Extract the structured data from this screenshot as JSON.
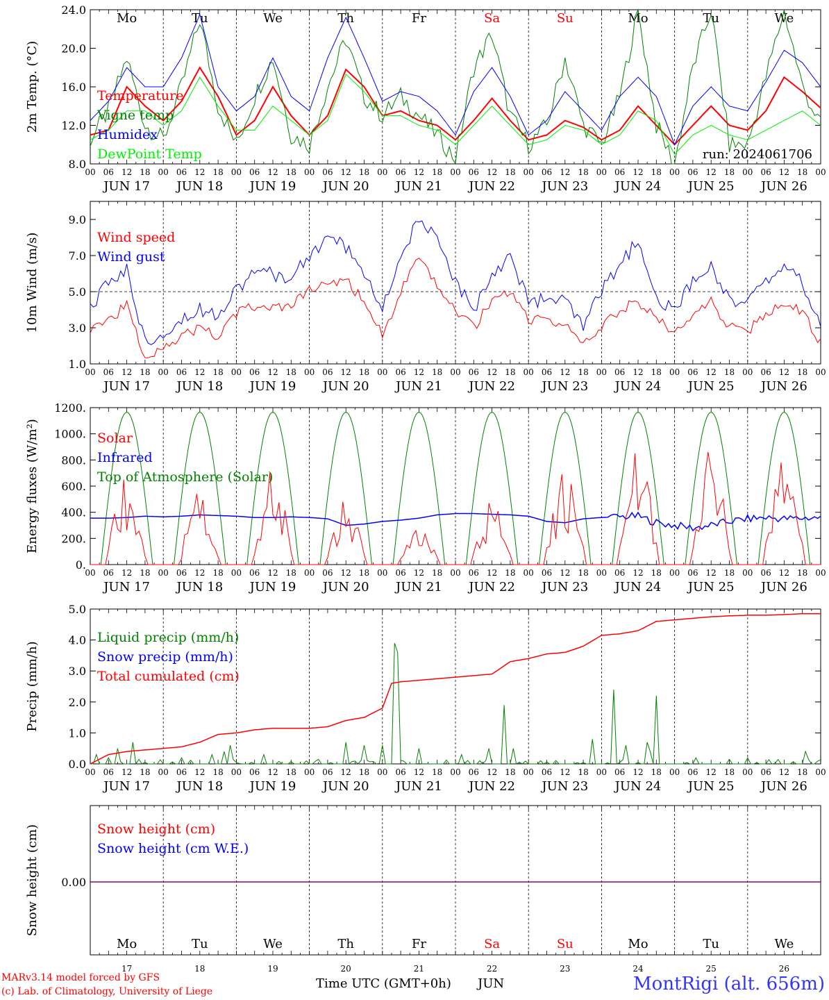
{
  "chart_data": [
    {
      "type": "line",
      "ylabel": "2m Temp. (°C)",
      "ylim": [
        8,
        24
      ],
      "yticks": [
        "8.0",
        "12.0",
        "16.0",
        "20.0",
        "24.0"
      ],
      "day_names": [
        "Mo",
        "Tu",
        "We",
        "Th",
        "Fr",
        "Sa",
        "Su",
        "Mo",
        "Tu",
        "We"
      ],
      "day_name_colors": [
        "#000000",
        "#000000",
        "#000000",
        "#000000",
        "#000000",
        "#ff0000",
        "#ff0000",
        "#000000",
        "#000000",
        "#000000"
      ],
      "run_label": "run: 2024061706",
      "x_hours": [
        0,
        6,
        12,
        18,
        24,
        30,
        36,
        42,
        48,
        54,
        60,
        66,
        72,
        78,
        84,
        90,
        96,
        102,
        108,
        114,
        120,
        126,
        132,
        138,
        144,
        150,
        156,
        162,
        168,
        174,
        180,
        186,
        192,
        198,
        204,
        210,
        216,
        222,
        228,
        234,
        240
      ],
      "series": [
        {
          "name": "Temperature",
          "color": "#ff0000",
          "width": 2,
          "values": [
            11.0,
            11.5,
            16.0,
            14.0,
            12.5,
            14.5,
            18.0,
            15.0,
            11.0,
            12.5,
            16.0,
            13.0,
            11.0,
            13.0,
            17.8,
            16.0,
            13.0,
            13.5,
            12.5,
            12.0,
            10.5,
            12.5,
            14.8,
            12.5,
            10.5,
            11.0,
            12.5,
            11.8,
            10.5,
            11.5,
            14.0,
            12.0,
            10.0,
            12.0,
            14.0,
            12.0,
            11.5,
            13.5,
            17.0,
            15.5,
            13.8
          ]
        },
        {
          "name": "Vigne temp",
          "color": "#008000",
          "width": 1,
          "values": [
            10.5,
            13.5,
            19.0,
            12.0,
            10.5,
            16.0,
            23.0,
            14.0,
            10.0,
            15.0,
            19.0,
            11.0,
            10.0,
            16.0,
            21.0,
            15.0,
            13.0,
            15.0,
            13.0,
            11.0,
            8.5,
            18.0,
            21.5,
            13.0,
            10.0,
            12.0,
            19.0,
            12.0,
            10.0,
            15.0,
            24.0,
            12.0,
            8.0,
            18.0,
            24.0,
            10.0,
            10.0,
            17.0,
            24.0,
            16.0,
            12.0
          ]
        },
        {
          "name": "Humidex",
          "color": "#0000ff",
          "width": 1,
          "values": [
            12.5,
            14.5,
            18.0,
            16.0,
            16.0,
            19.0,
            23.5,
            16.0,
            13.5,
            15.0,
            19.0,
            15.0,
            13.5,
            19.0,
            23.2,
            19.0,
            14.5,
            15.5,
            15.0,
            13.5,
            11.0,
            15.5,
            18.0,
            15.0,
            11.0,
            12.5,
            15.5,
            13.5,
            11.5,
            15.0,
            17.0,
            15.0,
            10.0,
            14.0,
            16.0,
            14.0,
            13.5,
            16.5,
            19.8,
            18.5,
            16.0
          ]
        },
        {
          "name": "DewPoint Temp",
          "color": "#00ee00",
          "width": 1,
          "values": [
            10.5,
            11.5,
            13.5,
            13.5,
            12.0,
            13.5,
            17.0,
            14.0,
            11.5,
            11.5,
            14.0,
            12.5,
            11.0,
            12.5,
            17.3,
            15.5,
            13.0,
            13.0,
            12.0,
            11.5,
            10.0,
            12.0,
            14.0,
            12.0,
            10.0,
            10.5,
            12.0,
            11.5,
            10.0,
            11.0,
            13.5,
            12.5,
            9.0,
            11.0,
            12.0,
            11.0,
            10.5,
            11.5,
            12.5,
            13.5,
            12.0
          ]
        }
      ]
    },
    {
      "type": "line",
      "ylabel": "10m Wind (m/s)",
      "ylim": [
        1,
        10
      ],
      "yticks": [
        "1.0",
        "3.0",
        "5.0",
        "7.0",
        "9.0"
      ],
      "reference_line": 5.0,
      "x_hours": [
        0,
        6,
        12,
        18,
        24,
        30,
        36,
        42,
        48,
        54,
        60,
        66,
        72,
        78,
        84,
        90,
        96,
        102,
        108,
        114,
        120,
        126,
        132,
        138,
        144,
        150,
        156,
        162,
        168,
        174,
        180,
        186,
        192,
        198,
        204,
        210,
        216,
        222,
        228,
        234,
        240
      ],
      "series": [
        {
          "name": "Wind speed",
          "color": "#ff0000",
          "width": 1,
          "values": [
            3.0,
            3.5,
            4.2,
            1.4,
            2.0,
            2.5,
            3.0,
            2.5,
            3.8,
            4.2,
            4.0,
            4.3,
            5.0,
            5.5,
            5.6,
            4.5,
            2.6,
            5.0,
            6.8,
            5.3,
            4.0,
            3.0,
            4.5,
            5.0,
            3.5,
            3.4,
            3.2,
            2.0,
            3.0,
            4.0,
            4.5,
            3.5,
            2.8,
            3.5,
            4.5,
            3.0,
            2.8,
            3.8,
            4.4,
            3.8,
            2.2
          ]
        },
        {
          "name": "Wind gust",
          "color": "#0000ff",
          "width": 1,
          "values": [
            4.0,
            5.5,
            6.2,
            2.2,
            2.8,
            3.5,
            4.0,
            3.8,
            5.2,
            6.0,
            6.0,
            5.7,
            7.0,
            8.0,
            7.5,
            6.0,
            4.0,
            7.0,
            9.0,
            7.8,
            5.5,
            4.0,
            6.0,
            7.0,
            4.5,
            4.5,
            4.5,
            3.0,
            5.0,
            6.5,
            7.8,
            4.5,
            4.0,
            5.5,
            6.5,
            4.5,
            4.5,
            5.5,
            6.5,
            5.5,
            3.0
          ]
        }
      ]
    },
    {
      "type": "line",
      "ylabel": "Energy fluxes (W/m²)",
      "ylim": [
        0,
        1200
      ],
      "yticks": [
        "0.",
        "200.",
        "400.",
        "600.",
        "800.",
        "1000.",
        "1200."
      ],
      "series": [
        {
          "name": "Solar",
          "color": "#ff0000",
          "width": 1,
          "day_peaks": [
            650,
            540,
            700,
            480,
            260,
            470,
            690,
            850,
            860,
            780
          ]
        },
        {
          "name": "Infrared",
          "color": "#0000ff",
          "width": 1.5,
          "values": [
            355,
            355,
            360,
            370,
            365,
            370,
            380,
            375,
            370,
            360,
            360,
            365,
            360,
            350,
            300,
            310,
            330,
            340,
            355,
            380,
            390,
            390,
            385,
            380,
            370,
            330,
            320,
            350,
            360,
            365,
            370,
            320,
            300,
            280,
            300,
            330,
            350,
            360,
            350,
            355,
            360
          ]
        },
        {
          "name": "Top of Atmosphere (Solar)",
          "color": "#008000",
          "width": 1,
          "daily_max": 1165
        }
      ]
    },
    {
      "type": "line",
      "ylabel": "Precip (mm/h)",
      "ylim": [
        0,
        5
      ],
      "yticks": [
        "0.0",
        "1.0",
        "2.0",
        "3.0",
        "4.0",
        "5.0"
      ],
      "series": [
        {
          "name": "Liquid precip (mm/h)",
          "color": "#008000",
          "width": 1,
          "spikes": [
            [
              2,
              0.3
            ],
            [
              6,
              0.2
            ],
            [
              9,
              0.5
            ],
            [
              14,
              0.7
            ],
            [
              30,
              0.2
            ],
            [
              40,
              0.3
            ],
            [
              44,
              0.4
            ],
            [
              46,
              0.6
            ],
            [
              57,
              0.3
            ],
            [
              84,
              0.7
            ],
            [
              90,
              0.6
            ],
            [
              96,
              0.6
            ],
            [
              100,
              3.9
            ],
            [
              101,
              3.6
            ],
            [
              108,
              0.5
            ],
            [
              122,
              0.3
            ],
            [
              131,
              0.5
            ],
            [
              136,
              1.9
            ],
            [
              139,
              0.5
            ],
            [
              165,
              0.8
            ],
            [
              172,
              2.4
            ],
            [
              176,
              0.6
            ],
            [
              183,
              0.7
            ],
            [
              186,
              2.2
            ],
            [
              184,
              0.4
            ],
            [
              199,
              0.2
            ],
            [
              216,
              0.2
            ],
            [
              235,
              0.4
            ]
          ]
        },
        {
          "name": "Snow precip (mm/h)",
          "color": "#0000ff",
          "width": 1,
          "values": []
        },
        {
          "name": "Total cumulated (cm)",
          "color": "#ff0000",
          "width": 1.5,
          "x_hours": [
            0,
            6,
            12,
            18,
            24,
            30,
            36,
            42,
            48,
            54,
            60,
            66,
            72,
            78,
            84,
            90,
            96,
            99,
            102,
            108,
            114,
            120,
            126,
            132,
            138,
            144,
            150,
            156,
            162,
            168,
            174,
            180,
            186,
            192,
            198,
            204,
            210,
            216,
            222,
            228,
            234,
            240
          ],
          "values": [
            0.0,
            0.3,
            0.4,
            0.45,
            0.5,
            0.55,
            0.7,
            0.95,
            1.0,
            1.1,
            1.15,
            1.15,
            1.15,
            1.2,
            1.4,
            1.5,
            1.8,
            2.6,
            2.65,
            2.7,
            2.75,
            2.8,
            2.85,
            2.9,
            3.3,
            3.4,
            3.55,
            3.6,
            3.8,
            4.15,
            4.2,
            4.3,
            4.6,
            4.65,
            4.7,
            4.75,
            4.78,
            4.8,
            4.8,
            4.82,
            4.85,
            4.85
          ]
        }
      ]
    },
    {
      "type": "line",
      "ylabel": "Snow height (cm)",
      "yticks": [
        "0.00"
      ],
      "day_names": [
        "Mo",
        "Tu",
        "We",
        "Th",
        "Fr",
        "Sa",
        "Su",
        "Mo",
        "Tu",
        "We"
      ],
      "day_name_colors": [
        "#000000",
        "#000000",
        "#000000",
        "#000000",
        "#000000",
        "#ff0000",
        "#ff0000",
        "#000000",
        "#000000",
        "#000000"
      ],
      "day_numbers": [
        "17",
        "18",
        "19",
        "20",
        "21",
        "22",
        "23",
        "24",
        "25",
        "26"
      ],
      "series": [
        {
          "name": "Snow height (cm)",
          "color": "#ff0000",
          "width": 1,
          "values": [
            0,
            0
          ]
        },
        {
          "name": "Snow height (cm W.E.)",
          "color": "#0000ff",
          "width": 1,
          "values": [
            0,
            0
          ]
        }
      ]
    }
  ],
  "x_axis": {
    "hour_ticks": [
      "00",
      "06",
      "12",
      "18"
    ],
    "date_labels": [
      "JUN 17",
      "JUN 18",
      "JUN 19",
      "JUN 20",
      "JUN 21",
      "JUN 22",
      "JUN 23",
      "JUN 24",
      "JUN 25",
      "JUN 26"
    ],
    "title": "Time UTC (GMT+0h)",
    "month": "JUN"
  },
  "footer": {
    "credit_line1": "MARv3.14 model forced by GFS",
    "credit_line2": "(c) Lab. of Climatology, University of Liege",
    "station": "MontRigi (alt. 656m)"
  }
}
